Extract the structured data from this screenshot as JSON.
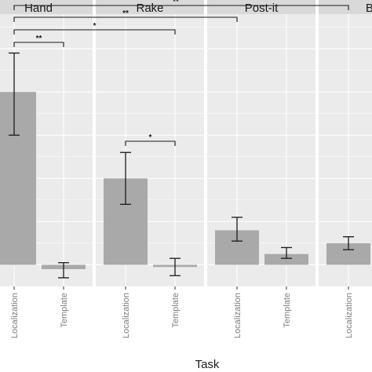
{
  "chart_data": {
    "type": "bar",
    "facets": [
      {
        "label": "Hand",
        "categories": [
          "Localization",
          "Template"
        ],
        "values": [
          4.0,
          -0.1
        ],
        "err_low": [
          3.0,
          -0.3
        ],
        "err_high": [
          4.9,
          0.05
        ]
      },
      {
        "label": "Rake",
        "categories": [
          "Localization",
          "Template"
        ],
        "values": [
          2.0,
          -0.05
        ],
        "err_low": [
          1.4,
          -0.25
        ],
        "err_high": [
          2.6,
          0.15
        ]
      },
      {
        "label": "Post-it",
        "categories": [
          "Localization",
          "Template"
        ],
        "values": [
          0.8,
          0.25
        ],
        "err_low": [
          0.55,
          0.15
        ],
        "err_high": [
          1.1,
          0.4
        ]
      },
      {
        "label": "Ba",
        "categories": [
          "Localization",
          "Template"
        ],
        "values": [
          0.5,
          null
        ],
        "err_low": [
          0.35,
          null
        ],
        "err_high": [
          0.65,
          null
        ]
      }
    ],
    "xlabel": "Task",
    "ylabel": "",
    "ylim": [
      -0.5,
      5.8
    ],
    "grid": true,
    "bar_color": "#a9a9a9",
    "panel_color": "#ebebeb",
    "strip_color": "#d9d9d9",
    "significance": [
      {
        "from": [
          0,
          0
        ],
        "to": [
          0,
          1
        ],
        "label": "**",
        "level": 0
      },
      {
        "from": [
          0,
          0
        ],
        "to": [
          1,
          1
        ],
        "label": "*",
        "level": 1
      },
      {
        "from": [
          0,
          0
        ],
        "to": [
          2,
          0
        ],
        "label": "**",
        "level": 2
      },
      {
        "from": [
          0,
          0
        ],
        "to": [
          3,
          0
        ],
        "label": "**",
        "level": 3
      },
      {
        "from": [
          1,
          0
        ],
        "to": [
          1,
          1
        ],
        "label": "*",
        "level": 0
      }
    ]
  }
}
